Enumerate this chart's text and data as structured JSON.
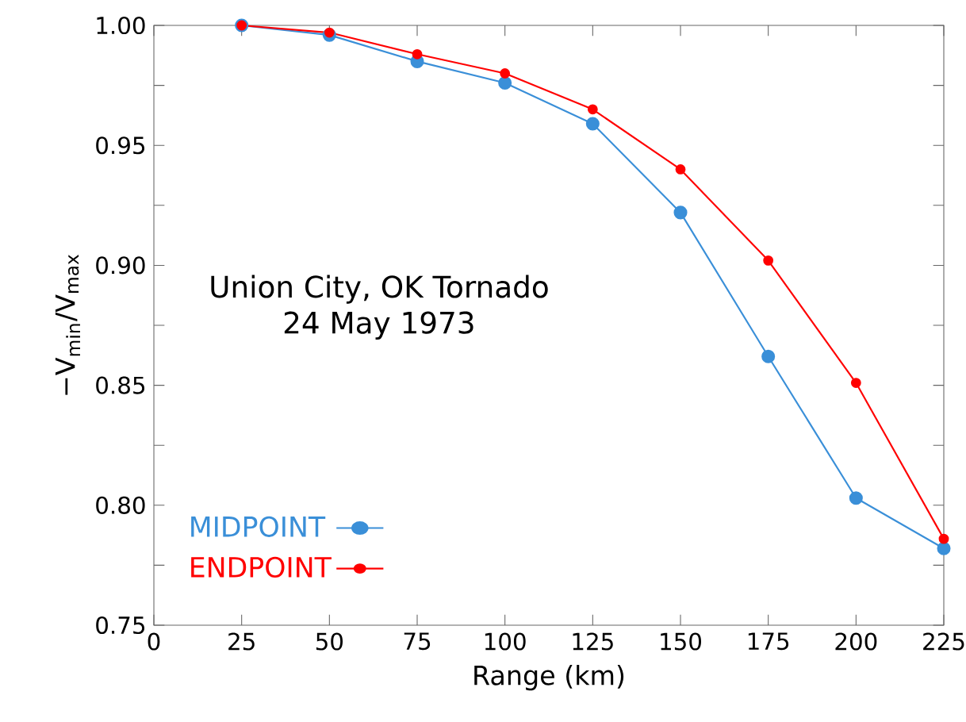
{
  "chart_data": {
    "type": "line",
    "xlabel": "Range (km)",
    "ylabel": "−V$_{min}$/V$_{max}$",
    "x": [
      25,
      50,
      75,
      100,
      125,
      150,
      175,
      200,
      225
    ],
    "series": [
      {
        "name": "MIDPOINT",
        "color": "#3a8fd8",
        "values": [
          1.0,
          0.996,
          0.985,
          0.976,
          0.959,
          0.922,
          0.862,
          0.803,
          0.782
        ]
      },
      {
        "name": "ENDPOINT",
        "color": "#ff0000",
        "values": [
          1.0,
          0.997,
          0.988,
          0.98,
          0.965,
          0.94,
          0.902,
          0.851,
          0.786
        ]
      }
    ],
    "annotations": [
      "Union City, OK Tornado",
      "24 May 1973"
    ],
    "xlim": [
      0,
      225
    ],
    "xticks": [
      0,
      25,
      50,
      75,
      100,
      125,
      150,
      175,
      200,
      225
    ],
    "ylim": [
      0.75,
      1.0
    ],
    "yticks": [
      {
        "value": 0.75,
        "label": "0.75"
      },
      {
        "value": 0.775,
        "label": null
      },
      {
        "value": 0.8,
        "label": "0.80"
      },
      {
        "value": 0.825,
        "label": null
      },
      {
        "value": 0.85,
        "label": "0.85"
      },
      {
        "value": 0.875,
        "label": null
      },
      {
        "value": 0.9,
        "label": "0.90"
      },
      {
        "value": 0.925,
        "label": null
      },
      {
        "value": 0.95,
        "label": "0.95"
      },
      {
        "value": 0.975,
        "label": null
      },
      {
        "value": 1.0,
        "label": "1.00"
      }
    ],
    "grid": false,
    "legend": "bottom left",
    "marker": "circle",
    "line_style": "solid"
  }
}
